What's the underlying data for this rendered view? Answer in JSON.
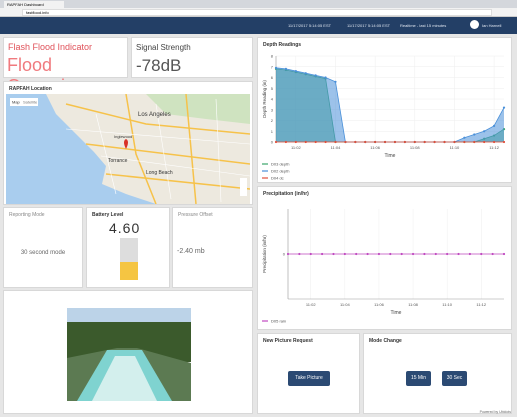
{
  "browser": {
    "tab": "RAPFAH Dashboard",
    "url": "fastflood.info"
  },
  "header": {
    "timestamp_left": "11/17/2017 5:14:05 EST",
    "timestamp_right": "11/17/2017 5:14:05 EST",
    "range": "Realtime - last 15 minutes",
    "user": "Ian Harnell"
  },
  "flood": {
    "title": "Flash Flood Indicator",
    "status": "Flood Occurring"
  },
  "signal": {
    "title": "Signal Strength",
    "value": "-78dB"
  },
  "map": {
    "title": "RAPFAH Location",
    "places": [
      "Los Angeles",
      "Torrance",
      "Long Beach",
      "Inglewood"
    ],
    "tabs": [
      "Map",
      "Satellite"
    ]
  },
  "mode": {
    "title": "Reporting Mode",
    "value": "30 second mode"
  },
  "battery": {
    "title": "Battery Level",
    "value": "4.60"
  },
  "pressure": {
    "title": "Pressure Offset",
    "value": "-2.40 mb"
  },
  "picture_request": {
    "title": "New Picture Request",
    "button": "Take Picture"
  },
  "mode_change": {
    "title": "Mode Change",
    "buttons": [
      "15 Min",
      "30 Sec"
    ]
  },
  "footer": "Powered by Ubidots",
  "chart_data": [
    {
      "type": "area",
      "title": "Depth Readings",
      "x_label": "Time",
      "y_label": "Depth Reading (in)",
      "categories": [
        null,
        null,
        "11:02",
        null,
        null,
        null,
        "11:04",
        null,
        null,
        null,
        "11:06",
        null,
        null,
        null,
        "11:08",
        null,
        null,
        null,
        "11:10",
        null,
        null,
        null,
        "11:12",
        null
      ],
      "ylim": [
        0,
        8
      ],
      "yticks": [
        0,
        1,
        2,
        3,
        4,
        5,
        6,
        7,
        8
      ],
      "grid": true,
      "series": [
        {
          "name": "D03 depth",
          "color": "#3aa56b",
          "values": [
            6.8,
            6.7,
            6.5,
            6.3,
            6.1,
            5.9,
            0,
            0,
            0,
            0,
            0,
            0,
            0,
            0,
            0,
            0,
            0,
            0,
            0,
            0,
            0,
            0.3,
            0.6,
            1.2
          ]
        },
        {
          "name": "D02 depth",
          "color": "#4a90d9",
          "values": [
            6.9,
            6.8,
            6.6,
            6.4,
            6.2,
            6.0,
            5.6,
            0,
            0,
            0,
            0,
            0,
            0,
            0,
            0,
            0,
            0,
            0,
            0,
            0.4,
            0.7,
            1.0,
            1.5,
            3.2
          ]
        },
        {
          "name": "D04 dc",
          "color": "#e0503c",
          "values": [
            0,
            0,
            0,
            0,
            0,
            0,
            0,
            0,
            0,
            0,
            0,
            0,
            0,
            0,
            0,
            0,
            0,
            0,
            0,
            0,
            0,
            0,
            0,
            0
          ]
        }
      ]
    },
    {
      "type": "line",
      "title": "Precipitation (in/hr)",
      "x_label": "Time",
      "y_label": "Precipitation (in/hr)",
      "categories": [
        null,
        null,
        "11:02",
        null,
        null,
        "11:04",
        null,
        null,
        "11:06",
        null,
        null,
        "11:08",
        null,
        null,
        "11:10",
        null,
        null,
        "11:12",
        null,
        null
      ],
      "ylim": [
        -1,
        1
      ],
      "yticks": [
        0
      ],
      "grid": true,
      "series": [
        {
          "name": "D05 rain",
          "color": "#c04ac0",
          "values": [
            0,
            0,
            0,
            0,
            0,
            0,
            0,
            0,
            0,
            0,
            0,
            0,
            0,
            0,
            0,
            0,
            0,
            0,
            0,
            0
          ]
        }
      ]
    }
  ]
}
